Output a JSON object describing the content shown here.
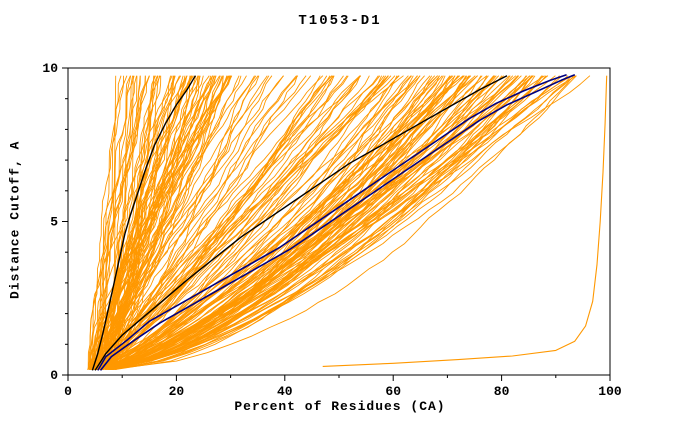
{
  "chart_data": {
    "type": "line",
    "title": "T1053-D1",
    "xlabel": "Percent of Residues (CA)",
    "ylabel": "Distance Cutoff, A",
    "xlim": [
      0,
      100
    ],
    "ylim": [
      0,
      10
    ],
    "x_major_ticks": [
      0,
      20,
      40,
      60,
      80,
      100
    ],
    "x_minor_step": 10,
    "y_major_ticks": [
      0,
      5,
      10
    ],
    "y_minor_step": 1,
    "grid": false,
    "colors": {
      "model": "#FF9800",
      "reference": "#000000",
      "selected": "#000080",
      "axis": "#000000",
      "background": "#FFFFFF"
    },
    "ensemble": {
      "count": 210,
      "seed": 1053,
      "x_start_range": [
        3.5,
        8.5
      ],
      "y_start": 0.18,
      "y_end": 9.75,
      "points": 36,
      "jitter": 1.0,
      "top_groups": [
        {
          "weight": 0.34,
          "range": [
            9,
            30
          ],
          "shape": [
            0.95,
            1.35
          ]
        },
        {
          "weight": 0.22,
          "range": [
            30,
            62
          ],
          "shape": [
            0.8,
            1.1
          ]
        },
        {
          "weight": 0.44,
          "range": [
            62,
            96
          ],
          "shape": [
            0.55,
            0.9
          ]
        }
      ]
    },
    "highlight_curves": [
      {
        "name": "reference-black-left",
        "color": "#000000",
        "width": 1.4,
        "points": [
          [
            4.5,
            0.15
          ],
          [
            5.5,
            0.7
          ],
          [
            6.5,
            1.4
          ],
          [
            7.5,
            2.2
          ],
          [
            8.5,
            3.0
          ],
          [
            9.5,
            3.8
          ],
          [
            10.5,
            4.6
          ],
          [
            11.5,
            5.2
          ],
          [
            13,
            6.0
          ],
          [
            14.5,
            6.8
          ],
          [
            16,
            7.5
          ],
          [
            18,
            8.2
          ],
          [
            20,
            8.8
          ],
          [
            22,
            9.3
          ],
          [
            23.5,
            9.75
          ]
        ]
      },
      {
        "name": "reference-black-mid",
        "color": "#000000",
        "width": 1.4,
        "points": [
          [
            5,
            0.15
          ],
          [
            7,
            0.7
          ],
          [
            10,
            1.3
          ],
          [
            14,
            1.9
          ],
          [
            18,
            2.5
          ],
          [
            22,
            3.1
          ],
          [
            27,
            3.8
          ],
          [
            32,
            4.5
          ],
          [
            37,
            5.1
          ],
          [
            42,
            5.7
          ],
          [
            47,
            6.3
          ],
          [
            52,
            6.9
          ],
          [
            58,
            7.5
          ],
          [
            64,
            8.1
          ],
          [
            70,
            8.7
          ],
          [
            76,
            9.3
          ],
          [
            81,
            9.75
          ]
        ]
      },
      {
        "name": "selected-navy-2",
        "color": "#000080",
        "width": 1.6,
        "points": [
          [
            5.5,
            0.15
          ],
          [
            7,
            0.6
          ],
          [
            11,
            1.15
          ],
          [
            15,
            1.75
          ],
          [
            21,
            2.35
          ],
          [
            27,
            2.95
          ],
          [
            33,
            3.55
          ],
          [
            39,
            4.15
          ],
          [
            44,
            4.75
          ],
          [
            49,
            5.35
          ],
          [
            54,
            5.95
          ],
          [
            59,
            6.55
          ],
          [
            64,
            7.15
          ],
          [
            69,
            7.75
          ],
          [
            74,
            8.35
          ],
          [
            79,
            8.85
          ],
          [
            84,
            9.25
          ],
          [
            89,
            9.6
          ],
          [
            92,
            9.78
          ]
        ]
      },
      {
        "name": "selected-navy-1",
        "color": "#000080",
        "width": 1.6,
        "points": [
          [
            6,
            0.15
          ],
          [
            8,
            0.6
          ],
          [
            12,
            1.1
          ],
          [
            17,
            1.7
          ],
          [
            23,
            2.3
          ],
          [
            29,
            2.9
          ],
          [
            35,
            3.5
          ],
          [
            41,
            4.1
          ],
          [
            46,
            4.7
          ],
          [
            51,
            5.3
          ],
          [
            56,
            5.9
          ],
          [
            61,
            6.5
          ],
          [
            66,
            7.1
          ],
          [
            71,
            7.7
          ],
          [
            76,
            8.3
          ],
          [
            81,
            8.8
          ],
          [
            86,
            9.2
          ],
          [
            91,
            9.6
          ],
          [
            93.5,
            9.78
          ]
        ]
      },
      {
        "name": "model-outlier-orange",
        "color": "#FF9800",
        "width": 1.1,
        "points": [
          [
            47,
            0.28
          ],
          [
            60,
            0.38
          ],
          [
            72,
            0.5
          ],
          [
            82,
            0.62
          ],
          [
            90,
            0.8
          ],
          [
            93.5,
            1.1
          ],
          [
            95.5,
            1.6
          ],
          [
            96.8,
            2.4
          ],
          [
            97.6,
            3.6
          ],
          [
            98.2,
            5.0
          ],
          [
            98.7,
            6.6
          ],
          [
            99.1,
            8.2
          ],
          [
            99.4,
            9.75
          ]
        ]
      }
    ]
  }
}
